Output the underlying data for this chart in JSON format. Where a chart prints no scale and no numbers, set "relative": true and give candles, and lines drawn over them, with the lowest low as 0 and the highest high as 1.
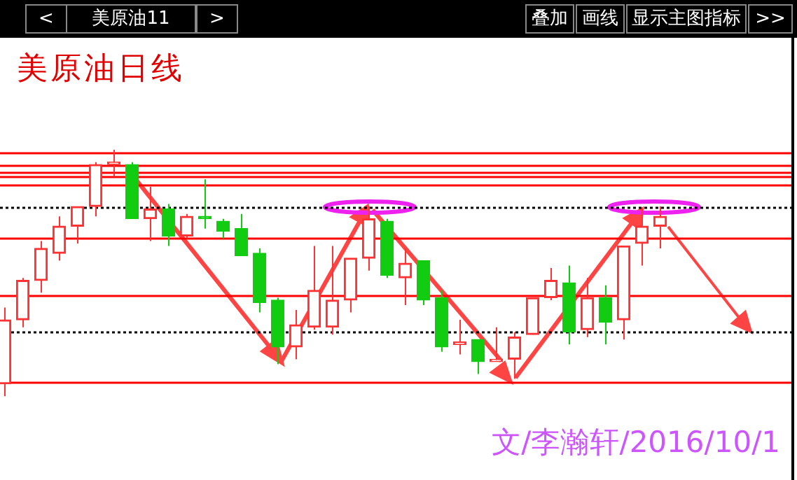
{
  "chart_data": {
    "type": "candlestick",
    "title": "美原油日线",
    "relative": true,
    "categories": [
      null,
      null,
      null,
      null,
      null,
      null,
      null,
      null,
      null,
      null,
      null,
      null,
      null,
      null,
      null,
      null,
      null,
      null,
      null,
      null,
      null,
      null,
      null,
      null,
      null,
      null,
      null,
      null,
      null,
      null,
      null,
      null,
      null,
      null,
      null,
      null,
      null
    ],
    "ohlc": [
      [
        0.05,
        0.36,
        0,
        0.31
      ],
      [
        0.31,
        0.48,
        0.28,
        0.47
      ],
      [
        0.47,
        0.63,
        0.42,
        0.6
      ],
      [
        0.58,
        0.73,
        0.55,
        0.69
      ],
      [
        0.69,
        0.77,
        0.62,
        0.77
      ],
      [
        0.77,
        0.95,
        0.73,
        0.94
      ],
      [
        0.94,
        1,
        0.89,
        0.95
      ],
      [
        0.94,
        0.95,
        0.72,
        0.72
      ],
      [
        0.72,
        0.85,
        0.63,
        0.76
      ],
      [
        0.76,
        0.78,
        0.61,
        0.65
      ],
      [
        0.65,
        0.74,
        0.64,
        0.73
      ],
      [
        0.73,
        0.88,
        0.68,
        0.72
      ],
      [
        0.71,
        0.72,
        0.64,
        0.67
      ],
      [
        0.68,
        0.74,
        0.57,
        0.57
      ],
      [
        0.58,
        0.6,
        0.34,
        0.38
      ],
      [
        0.39,
        0.4,
        0.13,
        0.2
      ],
      [
        0.2,
        0.35,
        0.15,
        0.29
      ],
      [
        0.28,
        0.61,
        0.27,
        0.43
      ],
      [
        0.28,
        0.61,
        0.25,
        0.39
      ],
      [
        0.39,
        0.56,
        0.34,
        0.56
      ],
      [
        0.56,
        0.77,
        0.51,
        0.72
      ],
      [
        0.71,
        0.72,
        0.48,
        0.49
      ],
      [
        0.48,
        0.6,
        0.37,
        0.54
      ],
      [
        0.55,
        0.55,
        0.37,
        0.39
      ],
      [
        0.4,
        0.43,
        0.18,
        0.2
      ],
      [
        0.21,
        0.31,
        0.17,
        0.22
      ],
      [
        0.23,
        0.23,
        0.09,
        0.14
      ],
      [
        0.14,
        0.28,
        0.14,
        0.15
      ],
      [
        0.15,
        0.26,
        0.07,
        0.24
      ],
      [
        0.25,
        0.4,
        0.25,
        0.4
      ],
      [
        0.4,
        0.52,
        0.39,
        0.47
      ],
      [
        0.46,
        0.53,
        0.21,
        0.26
      ],
      [
        0.27,
        0.48,
        0.24,
        0.4
      ],
      [
        0.4,
        0.45,
        0.21,
        0.3
      ],
      [
        0.31,
        0.61,
        0.23,
        0.61
      ],
      [
        0.62,
        0.76,
        0.53,
        0.69
      ],
      [
        0.69,
        0.77,
        0.6,
        0.73
      ]
    ],
    "colors": [
      "#ff3333",
      "#ff3333",
      "#ff3333",
      "#ff3333",
      "#ff3333",
      "#ff3333",
      "#ff3333",
      "#11cc11",
      "#ff3333",
      "#11cc11",
      "#ff3333",
      "#11cc11",
      "#11cc11",
      "#11cc11",
      "#11cc11",
      "#11cc11",
      "#ff3333",
      "#ff3333",
      "#ff3333",
      "#ff3333",
      "#ff3333",
      "#11cc11",
      "#ff3333",
      "#11cc11",
      "#11cc11",
      "#ff3333",
      "#11cc11",
      "#ff3333",
      "#ff3333",
      "#ff3333",
      "#ff3333",
      "#11cc11",
      "#ff3333",
      "#11cc11",
      "#ff3333",
      "#ff3333",
      "#ff3333"
    ],
    "ref_lines": [
      {
        "axis": "y",
        "value": 0.99,
        "color": "#ff0000"
      },
      {
        "axis": "y",
        "value": 0.94,
        "color": "#ff0000"
      },
      {
        "axis": "y",
        "value": 0.91,
        "color": "#ff0000"
      },
      {
        "axis": "y",
        "value": 0.89,
        "color": "#ff0000"
      },
      {
        "axis": "y",
        "value": 0.86,
        "color": "#ff0000"
      },
      {
        "axis": "y",
        "value": 0.77,
        "color": "#000000",
        "line_style": "dotted"
      },
      {
        "axis": "y",
        "value": 0.64,
        "color": "#ff0000"
      },
      {
        "axis": "y",
        "value": 0.41,
        "color": "#ff0000"
      },
      {
        "axis": "y",
        "value": 0.26,
        "color": "#000000",
        "line_style": "dotted"
      },
      {
        "axis": "y",
        "value": 0.06,
        "color": "#ff0000"
      }
    ],
    "annotations": [
      "<",
      "美原油11",
      ">",
      "叠加",
      "画线",
      "显示主图指标",
      ">>",
      "文/李瀚轩/2016/10/1"
    ],
    "legend": false
  }
}
